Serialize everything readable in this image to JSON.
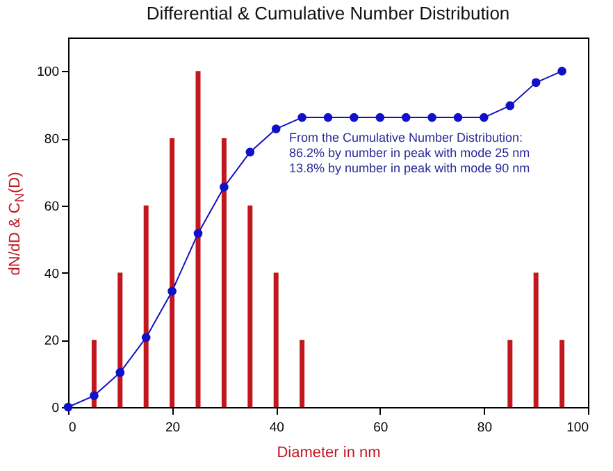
{
  "chart_data": {
    "type": "line",
    "title": "Differential & Cumulative Number Distribution",
    "xlabel": "Diameter in nm",
    "ylabel": "dN/dD & C$_{N}$(D)",
    "x": [
      0,
      5,
      10,
      15,
      20,
      25,
      30,
      35,
      40,
      45,
      50,
      55,
      60,
      65,
      70,
      75,
      80,
      85,
      90,
      95
    ],
    "series": [
      {
        "type": "bar",
        "color": "#c0181e",
        "x": [
          5,
          10,
          15,
          20,
          25,
          30,
          35,
          40,
          45,
          85,
          90,
          95
        ],
        "values": [
          20,
          40,
          60,
          80,
          100,
          80,
          60,
          40,
          20,
          20,
          40,
          20
        ]
      },
      {
        "color": "#1010c8",
        "values": [
          0,
          3.4,
          10.3,
          20.7,
          34.5,
          51.7,
          65.5,
          75.9,
          82.8,
          86.2,
          86.2,
          86.2,
          86.2,
          86.2,
          86.2,
          86.2,
          86.2,
          89.7,
          96.6,
          100
        ]
      }
    ],
    "annotations": [
      "From the Cumulative Number Distribution:",
      "86.2% by number in peak with mode 25 nm",
      "13.8% by number in peak with mode 90 nm"
    ],
    "xlim": [
      0,
      100
    ],
    "xticks": [
      0,
      20,
      40,
      60,
      80,
      100
    ],
    "ylim": [
      0,
      110
    ],
    "yticks": [
      0,
      20,
      40,
      60,
      80,
      100
    ],
    "grid": false,
    "legend": false,
    "marker": "circle",
    "line_style": "solid"
  }
}
